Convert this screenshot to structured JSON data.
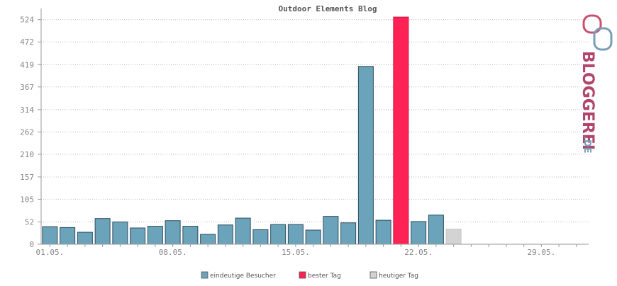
{
  "chart_data": {
    "type": "bar",
    "title": "Outdoor Elements Blog",
    "y_ticks": [
      0,
      52,
      105,
      157,
      210,
      262,
      314,
      367,
      419,
      472,
      524
    ],
    "ylim": [
      0,
      550
    ],
    "x_tick_labels": [
      {
        "label": "01.05.",
        "day": 1
      },
      {
        "label": "08.05.",
        "day": 8
      },
      {
        "label": "15.05.",
        "day": 15
      },
      {
        "label": "22.05.",
        "day": 22
      },
      {
        "label": "29.05.",
        "day": 29
      }
    ],
    "days": [
      1,
      2,
      3,
      4,
      5,
      6,
      7,
      8,
      9,
      10,
      11,
      12,
      13,
      14,
      15,
      16,
      17,
      18,
      19,
      20,
      21,
      22,
      23,
      24
    ],
    "values": [
      41,
      39,
      28,
      60,
      52,
      38,
      42,
      55,
      42,
      23,
      45,
      61,
      34,
      46,
      46,
      33,
      65,
      50,
      415,
      56,
      530,
      53,
      68,
      35
    ],
    "bar_kinds": [
      "normal",
      "normal",
      "normal",
      "normal",
      "normal",
      "normal",
      "normal",
      "normal",
      "normal",
      "normal",
      "normal",
      "normal",
      "normal",
      "normal",
      "normal",
      "normal",
      "normal",
      "normal",
      "normal",
      "normal",
      "best",
      "normal",
      "normal",
      "today"
    ],
    "series": [
      {
        "name": "eindeutige Besucher",
        "color": "#6ba3bb"
      },
      {
        "name": "bester Tag",
        "color": "#ff2255"
      },
      {
        "name": "heutiger Tag",
        "color": "#d3d3d3"
      }
    ],
    "grid": true,
    "legend_position": "bottom-center"
  },
  "logo": {
    "text": "BLOGGEREI",
    "suffix": ".DE",
    "color_main": "#b0476a",
    "color_accent": "#7b9db8"
  }
}
